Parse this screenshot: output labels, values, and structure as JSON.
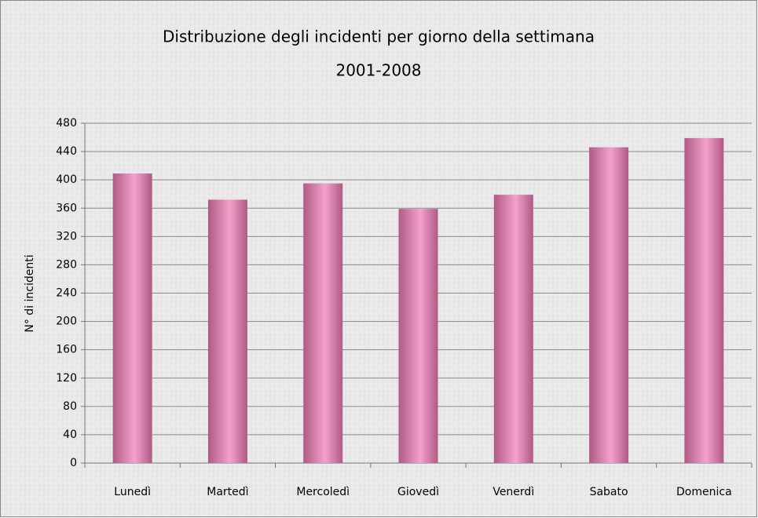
{
  "chart_data": {
    "type": "bar",
    "title": "Distribuzione degli incidenti per giorno della settimana",
    "subtitle": "2001-2008",
    "y_label": "N° di incidenti",
    "categories": [
      "Lunedì",
      "Martedì",
      "Mercoledì",
      "Giovedì",
      "Venerdì",
      "Sabato",
      "Domenica"
    ],
    "values": [
      409,
      372,
      395,
      359,
      379,
      446,
      459
    ],
    "color": "#f2a2cb",
    "ylim": [
      0,
      480
    ],
    "yticks": [
      0,
      40,
      80,
      120,
      160,
      200,
      240,
      280,
      320,
      360,
      400,
      440,
      480
    ],
    "grid": true
  }
}
